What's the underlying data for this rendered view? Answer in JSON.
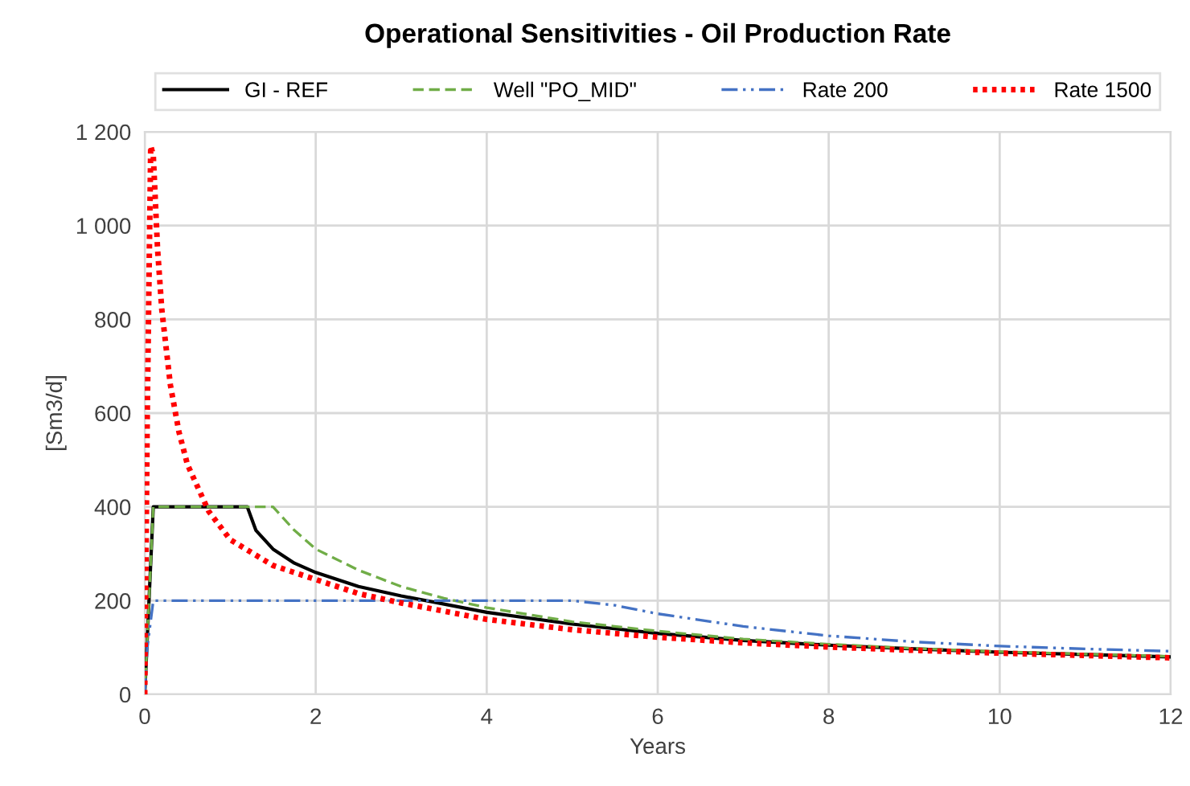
{
  "chart_data": {
    "type": "line",
    "title": "Operational Sensitivities - Oil Production Rate",
    "xlabel": "Years",
    "ylabel": "[Sm3/d]",
    "xlim": [
      0,
      12
    ],
    "xticks": [
      0,
      2,
      4,
      6,
      8,
      10,
      12
    ],
    "ylim": [
      0,
      1200
    ],
    "yticks": [
      0,
      200,
      400,
      600,
      800,
      {
        "value": 1000,
        "label": "1 000"
      },
      {
        "value": 1200,
        "label": "1 200"
      }
    ],
    "grid": true,
    "legend": "top",
    "marker": "none",
    "series": [
      {
        "name": "GI - REF",
        "color": "#000000",
        "line_style": "solid",
        "x": [
          0,
          0.05,
          0.1,
          1.2,
          1.3,
          1.5,
          1.75,
          2,
          2.5,
          3,
          4,
          5,
          6,
          7,
          8,
          9,
          10,
          11,
          12
        ],
        "values": [
          0,
          200,
          400,
          400,
          350,
          310,
          280,
          260,
          230,
          210,
          175,
          150,
          130,
          115,
          105,
          97,
          90,
          85,
          80
        ]
      },
      {
        "name": "Well \"PO_MID\"",
        "color": "#70ad47",
        "line_style": "dashed",
        "x": [
          0,
          0.1,
          1.5,
          1.75,
          2,
          2.5,
          3,
          3.5,
          4,
          5,
          6,
          7,
          8,
          9,
          10,
          11,
          12
        ],
        "values": [
          0,
          400,
          400,
          350,
          310,
          265,
          230,
          205,
          185,
          155,
          135,
          118,
          107,
          98,
          91,
          86,
          81
        ]
      },
      {
        "name": "Rate 200",
        "color": "#4472c4",
        "line_style": "dashdot",
        "x": [
          0,
          0.03,
          0.1,
          5,
          5.5,
          6,
          7,
          8,
          9,
          10,
          11,
          12
        ],
        "values": [
          0,
          100,
          200,
          200,
          190,
          172,
          145,
          125,
          112,
          103,
          97,
          92
        ]
      },
      {
        "name": "Rate 1500",
        "color": "#ff0000",
        "line_style": "dotted",
        "x": [
          0,
          0.03,
          0.07,
          0.1,
          0.15,
          0.2,
          0.3,
          0.4,
          0.5,
          0.75,
          1,
          1.5,
          2,
          2.5,
          3,
          4,
          5,
          6,
          7,
          8,
          9,
          10,
          11,
          12
        ],
        "values": [
          0,
          600,
          1170,
          1150,
          950,
          820,
          660,
          560,
          490,
          390,
          330,
          275,
          245,
          215,
          195,
          160,
          138,
          122,
          110,
          101,
          94,
          88,
          83,
          78
        ]
      }
    ]
  }
}
